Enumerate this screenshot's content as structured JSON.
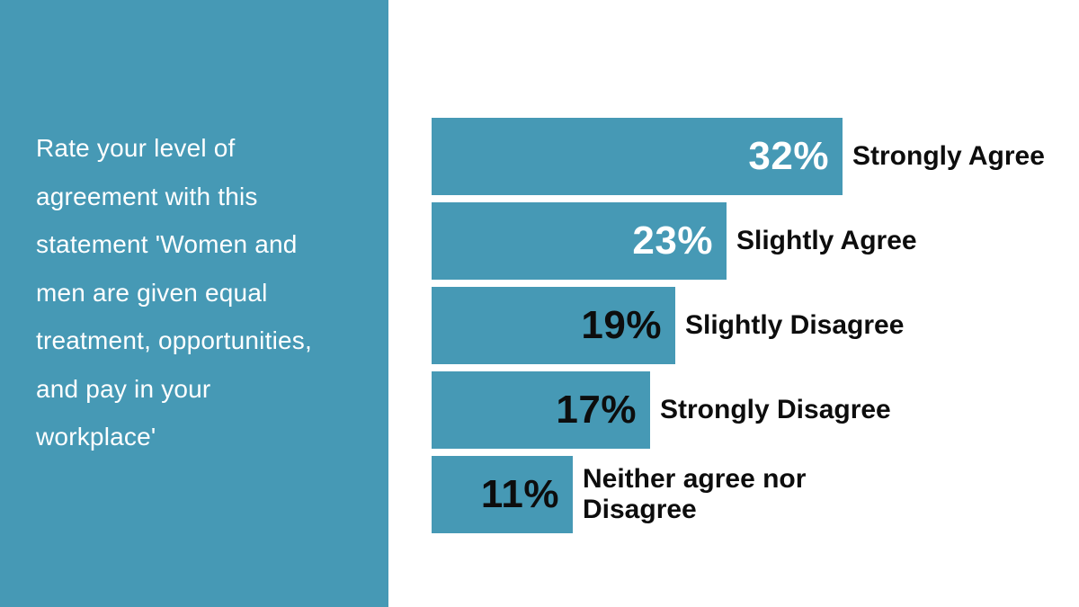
{
  "sidebar": {
    "background_color": "#4699B5",
    "text_color": "#FFFFFF",
    "statement_full": "Rate your level of agreement with this statement 'Women and men are given equal treatment, opportunities, and pay in your workplace'",
    "lines": [
      "Rate your level of",
      "agreement with this",
      "statement 'Women and",
      "men are given equal",
      "treatment, opportunities,",
      "and pay in your",
      "workplace'"
    ]
  },
  "chart_data": {
    "type": "bar",
    "orientation": "horizontal",
    "title": "Rate your level of agreement with this statement 'Women and men are given equal treatment, opportunities, and pay in your workplace'",
    "categories": [
      "Strongly Agree",
      "Slightly Agree",
      "Slightly Disagree",
      "Strongly Disagree",
      "Neither agree nor Disagree"
    ],
    "values": [
      32,
      23,
      19,
      17,
      11
    ],
    "value_labels": [
      "32%",
      "23%",
      "19%",
      "17%",
      "11%"
    ],
    "unit": "%",
    "xlim": [
      0,
      32
    ],
    "bar_color": "#4699B5",
    "value_label_colors": [
      "#FFFFFF",
      "#FFFFFF",
      "#0D0D0D",
      "#0D0D0D",
      "#0D0D0D"
    ],
    "category_label_color": "#0D0D0D",
    "grid": false,
    "axes_visible": false,
    "legend": false
  }
}
